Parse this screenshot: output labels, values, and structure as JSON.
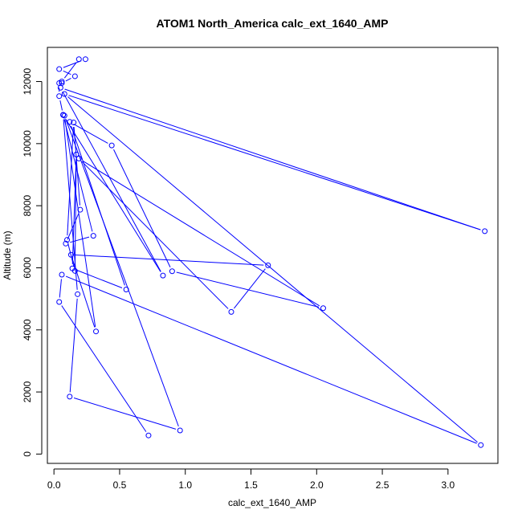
{
  "chart_data": {
    "type": "line",
    "title": "ATOM1 North_America calc_ext_1640_AMP",
    "xlabel": "calc_ext_1640_AMP",
    "ylabel": "Altitude (m)",
    "xlim": [
      -0.05,
      3.38
    ],
    "ylim": [
      -300,
      13100
    ],
    "xticks": [
      0.0,
      0.5,
      1.0,
      1.5,
      2.0,
      2.5,
      3.0
    ],
    "xtick_labels": [
      "0.0",
      "0.5",
      "1.0",
      "1.5",
      "2.0",
      "2.5",
      "3.0"
    ],
    "yticks": [
      0,
      2000,
      4000,
      6000,
      8000,
      10000,
      12000
    ],
    "ytick_labels": [
      "0",
      "2000",
      "4000",
      "6000",
      "8000",
      "10000",
      "12000"
    ],
    "color": "#0000ff",
    "series": [
      {
        "points": [
          [
            0.72,
            600
          ],
          [
            0.04,
            4900
          ],
          [
            0.06,
            5780
          ],
          [
            3.25,
            290
          ],
          [
            0.08,
            11600
          ],
          [
            3.28,
            7180
          ],
          [
            0.05,
            11800
          ],
          [
            0.83,
            5750
          ],
          [
            0.07,
            10920
          ],
          [
            0.18,
            5150
          ],
          [
            0.12,
            1850
          ],
          [
            0.96,
            760
          ],
          [
            0.08,
            10900
          ],
          [
            0.32,
            3950
          ],
          [
            0.13,
            6420
          ],
          [
            1.63,
            6080
          ],
          [
            1.35,
            4580
          ],
          [
            0.19,
            9520
          ],
          [
            2.05,
            4700
          ],
          [
            0.9,
            5890
          ],
          [
            0.44,
            9940
          ],
          [
            0.12,
            10700
          ],
          [
            0.55,
            5300
          ],
          [
            0.14,
            5980
          ],
          [
            0.17,
            9650
          ],
          [
            0.16,
            5900
          ],
          [
            0.1,
            6900
          ],
          [
            0.15,
            10680
          ],
          [
            0.2,
            7870
          ],
          [
            0.09,
            6780
          ],
          [
            0.3,
            7030
          ],
          [
            0.07,
            10930
          ],
          [
            0.04,
            11530
          ],
          [
            0.04,
            11950
          ],
          [
            0.06,
            11950
          ],
          [
            0.16,
            12170
          ],
          [
            0.04,
            12400
          ],
          [
            0.24,
            12720
          ],
          [
            0.19,
            12720
          ],
          [
            0.06,
            12000
          ]
        ]
      }
    ]
  }
}
